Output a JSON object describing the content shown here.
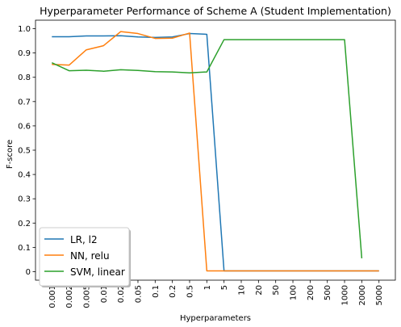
{
  "chart_data": {
    "type": "line",
    "title": "Hyperparameter Performance of Scheme A (Student Implementation)",
    "xlabel": "Hyperparameters",
    "ylabel": "F-score",
    "categories": [
      "0.001",
      "0.002",
      "0.005",
      "0.01",
      "0.02",
      "0.05",
      "0.1",
      "0.2",
      "0.5",
      "1",
      "5",
      "10",
      "20",
      "50",
      "100",
      "200",
      "500",
      "1000",
      "2000",
      "5000"
    ],
    "yticks": [
      "0",
      "0.1",
      "0.2",
      "0.3",
      "0.4",
      "0.5",
      "0.6",
      "0.7",
      "0.8",
      "0.9",
      "1.0"
    ],
    "ylim": [
      -0.035,
      1.035
    ],
    "grid": false,
    "legend_position": "lower-left",
    "series": [
      {
        "name": "LR, l2",
        "color": "#1f77b4",
        "values": [
          0.967,
          0.967,
          0.97,
          0.97,
          0.971,
          0.966,
          0.964,
          0.966,
          0.98,
          0.977,
          0.003,
          0.003,
          0.003,
          0.003,
          0.003,
          0.003,
          0.003,
          0.003,
          0.003,
          0.003
        ]
      },
      {
        "name": "NN, relu",
        "color": "#ff7f0e",
        "values": [
          0.853,
          0.85,
          0.913,
          0.93,
          0.988,
          0.98,
          0.96,
          0.961,
          0.982,
          0.003,
          0.003,
          0.003,
          0.003,
          0.003,
          0.003,
          0.003,
          0.003,
          0.003,
          0.003,
          0.003
        ]
      },
      {
        "name": "SVM, linear",
        "color": "#2ca02c",
        "values": [
          0.86,
          0.827,
          0.829,
          0.825,
          0.831,
          0.828,
          0.823,
          0.822,
          0.818,
          0.822,
          0.955,
          0.955,
          0.955,
          0.955,
          0.955,
          0.955,
          0.955,
          0.955,
          0.055,
          null
        ]
      }
    ]
  }
}
